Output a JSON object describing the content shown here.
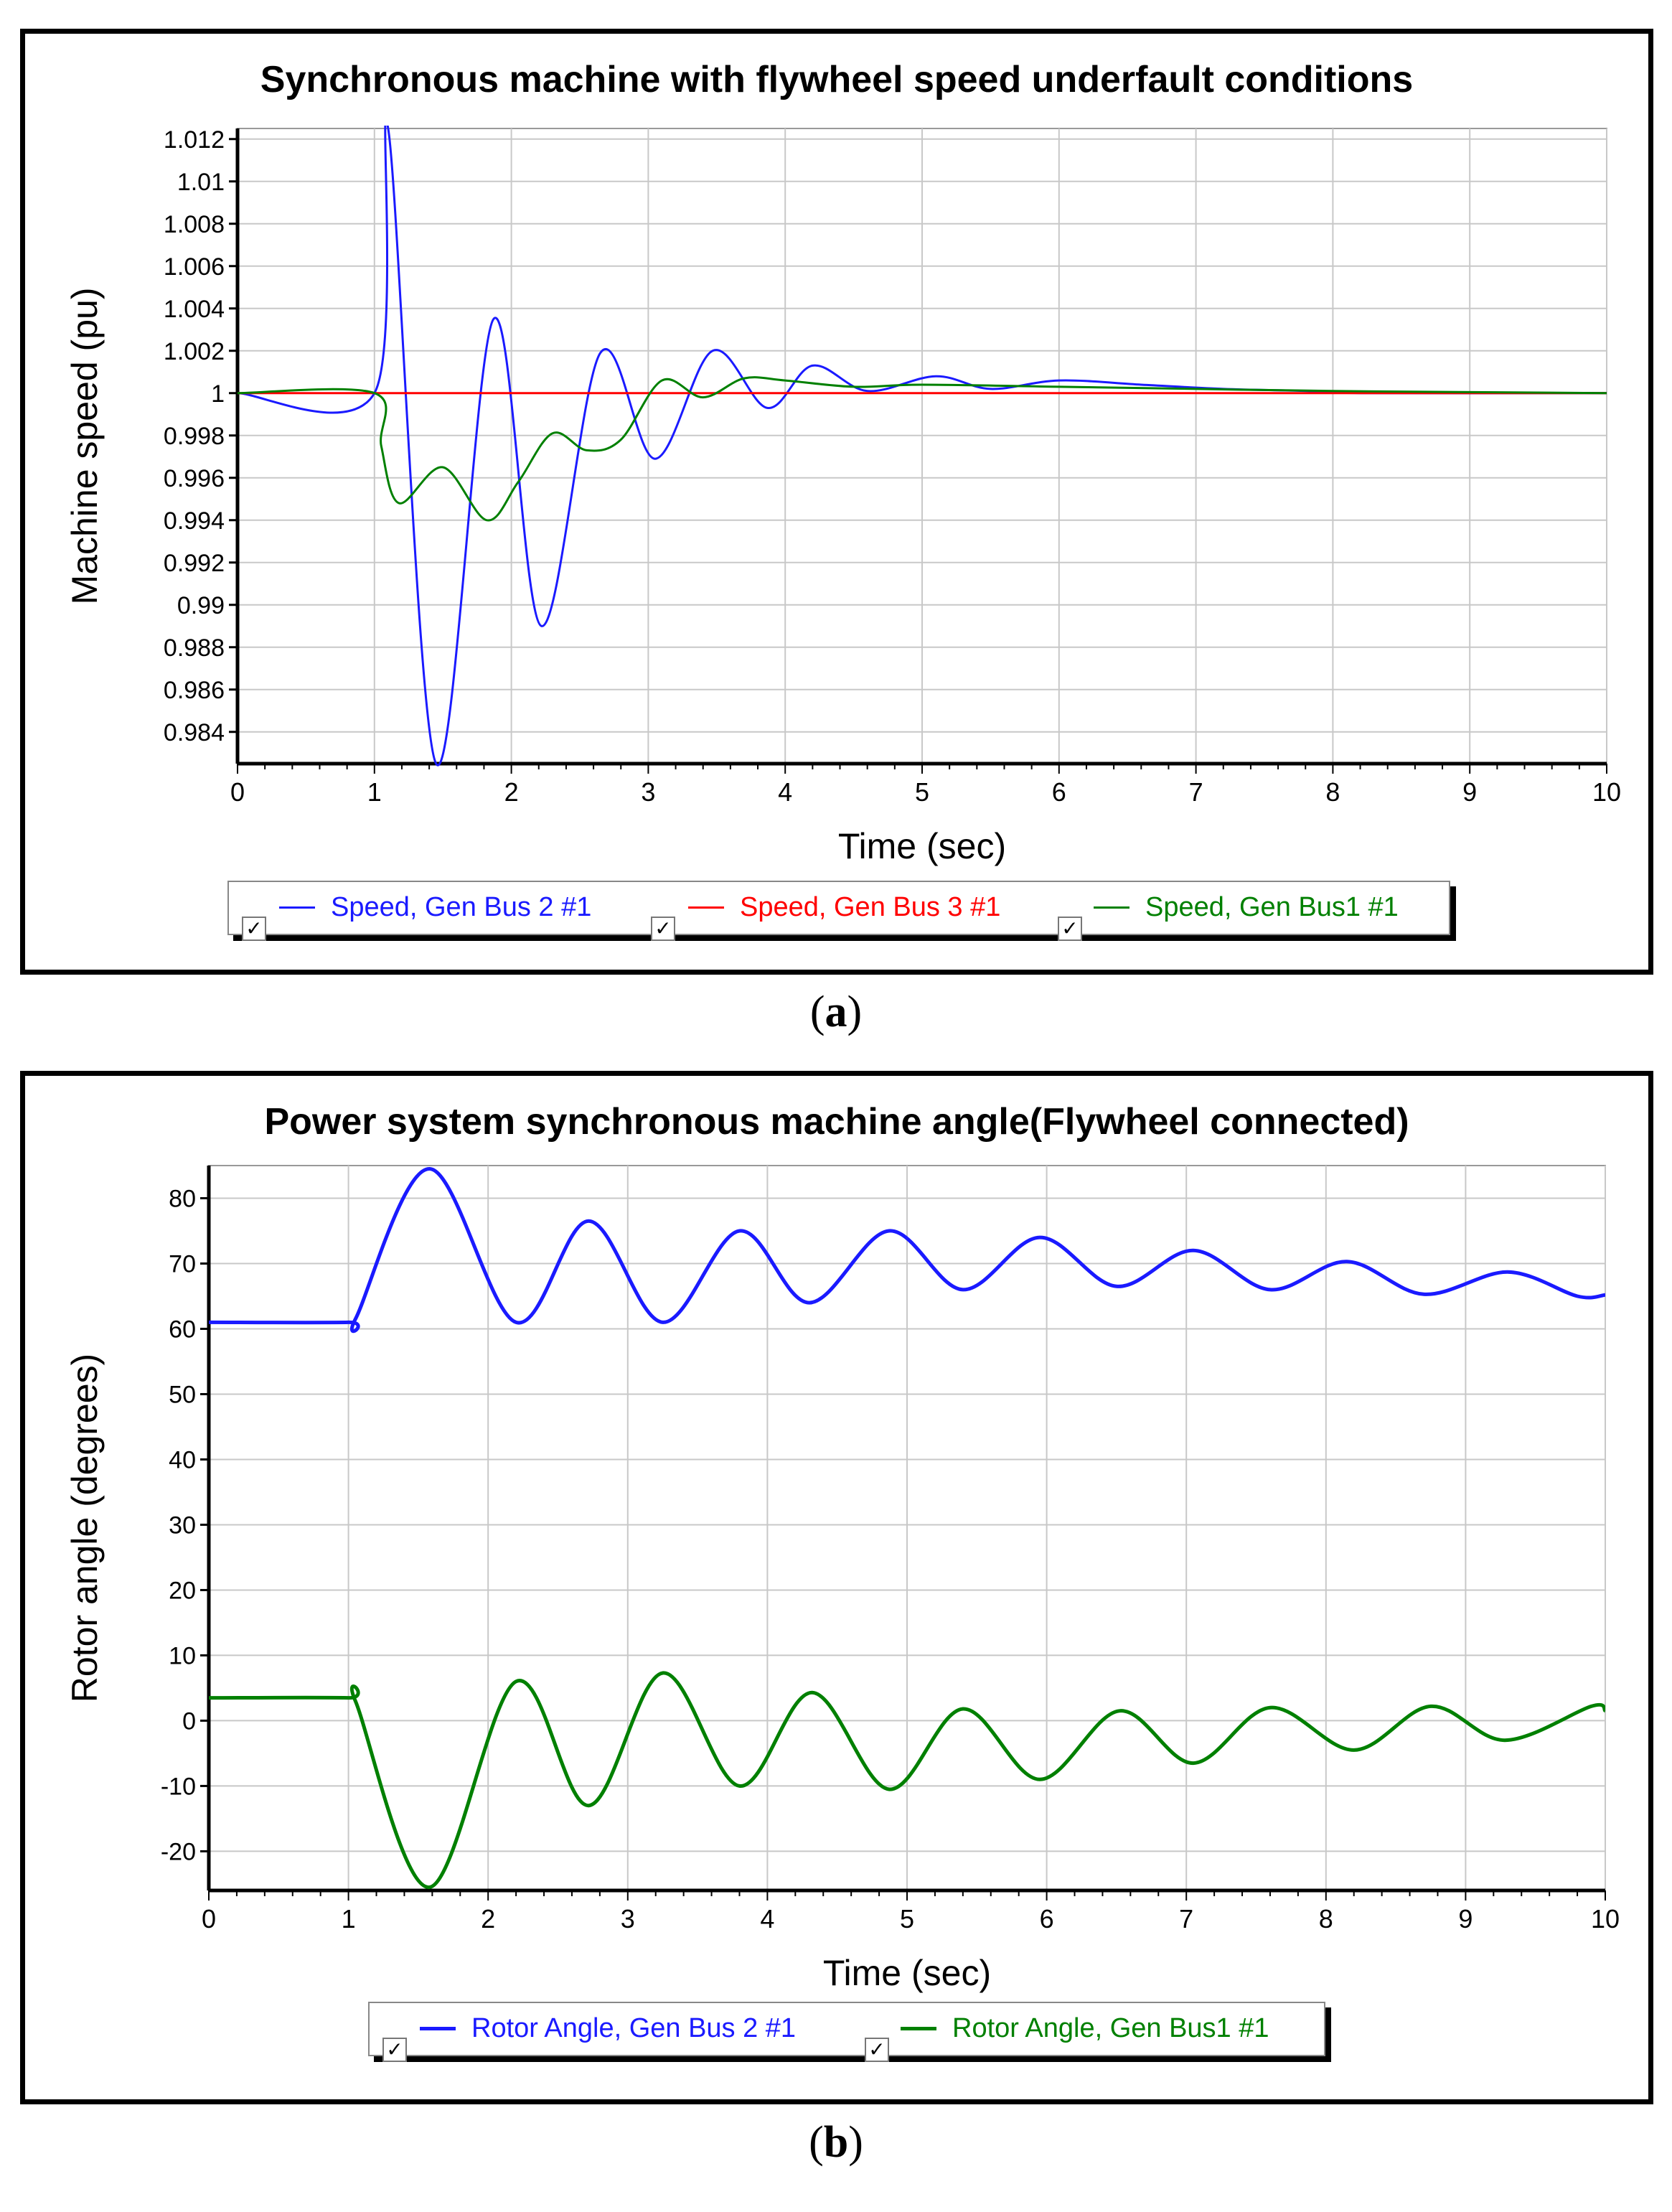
{
  "chart_data": [
    {
      "type": "line",
      "title": "Synchronous machine with flywheel speed underfault conditions",
      "xlabel": "Time (sec)",
      "ylabel": "Machine speed (pu)",
      "xlim": [
        0,
        10
      ],
      "ylim": [
        0.9825,
        1.0125
      ],
      "xticks": [
        "0",
        "1",
        "2",
        "3",
        "4",
        "5",
        "6",
        "7",
        "8",
        "9",
        "10"
      ],
      "yticks": [
        "1.012",
        "1.01",
        "1.008",
        "1.006",
        "1.004",
        "1.002",
        "1",
        "0.998",
        "0.996",
        "0.994",
        "0.992",
        "0.99",
        "0.988",
        "0.986",
        "0.984"
      ],
      "grid": true,
      "legend_position": "bottom",
      "series": [
        {
          "name": "Speed, Gen Bus 2 #1",
          "color": "#1a1aff",
          "x": [
            0,
            1.0,
            1.1,
            1.45,
            1.87,
            2.22,
            2.65,
            3.05,
            3.47,
            3.87,
            4.2,
            4.6,
            5.1,
            5.5,
            6.0,
            6.6,
            7.2,
            7.8,
            8.2,
            10
          ],
          "y": [
            1.0,
            1.0,
            1.0125,
            0.9825,
            1.0035,
            0.989,
            1.0019,
            0.9969,
            1.002,
            0.9993,
            1.0013,
            1.0001,
            1.0008,
            1.0002,
            1.0006,
            1.0004,
            1.0002,
            1.0001,
            1.0,
            1.0
          ]
        },
        {
          "name": "Speed, Gen Bus 3 #1",
          "color": "#ff0000",
          "x": [
            0,
            10
          ],
          "y": [
            1.0,
            1.0
          ]
        },
        {
          "name": "Speed, Gen Bus1 #1",
          "color": "#008000",
          "x": [
            0,
            1.0,
            1.05,
            1.18,
            1.5,
            1.82,
            2.05,
            2.3,
            2.55,
            2.8,
            3.1,
            3.4,
            3.7,
            4.0,
            4.5,
            5.0,
            6.0,
            7.0,
            8.0,
            10
          ],
          "y": [
            1.0,
            1.0,
            0.9975,
            0.9948,
            0.9965,
            0.994,
            0.9958,
            0.9981,
            0.9973,
            0.9978,
            1.0006,
            0.9998,
            1.0007,
            1.0006,
            1.0003,
            1.0004,
            1.0003,
            1.0002,
            1.0001,
            1.0
          ]
        }
      ]
    },
    {
      "type": "line",
      "title": "Power system synchronous machine angle(Flywheel connected)",
      "xlabel": "Time (sec)",
      "ylabel": "Rotor angle (degrees)",
      "xlim": [
        0,
        10
      ],
      "ylim": [
        -26,
        85
      ],
      "xticks": [
        "0",
        "1",
        "2",
        "3",
        "4",
        "5",
        "6",
        "7",
        "8",
        "9",
        "10"
      ],
      "yticks": [
        "80",
        "70",
        "60",
        "50",
        "40",
        "30",
        "20",
        "10",
        "0",
        "-10",
        "-20"
      ],
      "grid": true,
      "legend_position": "bottom",
      "series": [
        {
          "name": "Rotor Angle, Gen Bus 2 #1",
          "color": "#1a1aff",
          "x": [
            0,
            1.0,
            1.05,
            1.58,
            2.2,
            2.72,
            3.25,
            3.8,
            4.3,
            4.87,
            5.4,
            5.95,
            6.5,
            7.05,
            7.6,
            8.15,
            8.7,
            9.3,
            9.8,
            10
          ],
          "y": [
            61,
            61,
            61.5,
            84.5,
            61,
            76.5,
            61,
            75,
            64,
            75,
            66,
            74,
            66.5,
            72,
            66,
            70.3,
            65.3,
            68.7,
            65,
            65.2
          ]
        },
        {
          "name": "Rotor Angle, Gen Bus1 #1",
          "color": "#008000",
          "x": [
            0,
            1.0,
            1.05,
            1.58,
            2.2,
            2.72,
            3.25,
            3.8,
            4.32,
            4.87,
            5.4,
            5.95,
            6.52,
            7.05,
            7.6,
            8.2,
            8.75,
            9.28,
            9.9,
            10
          ],
          "y": [
            3.5,
            3.5,
            3.0,
            -25.5,
            6,
            -13,
            7.3,
            -10,
            4.3,
            -10.5,
            1.8,
            -9,
            1.5,
            -6.5,
            2,
            -4.5,
            2.2,
            -3,
            2.2,
            1.5
          ]
        }
      ]
    }
  ],
  "captions": {
    "a": "a",
    "b": "b"
  },
  "legend_check": "✓"
}
